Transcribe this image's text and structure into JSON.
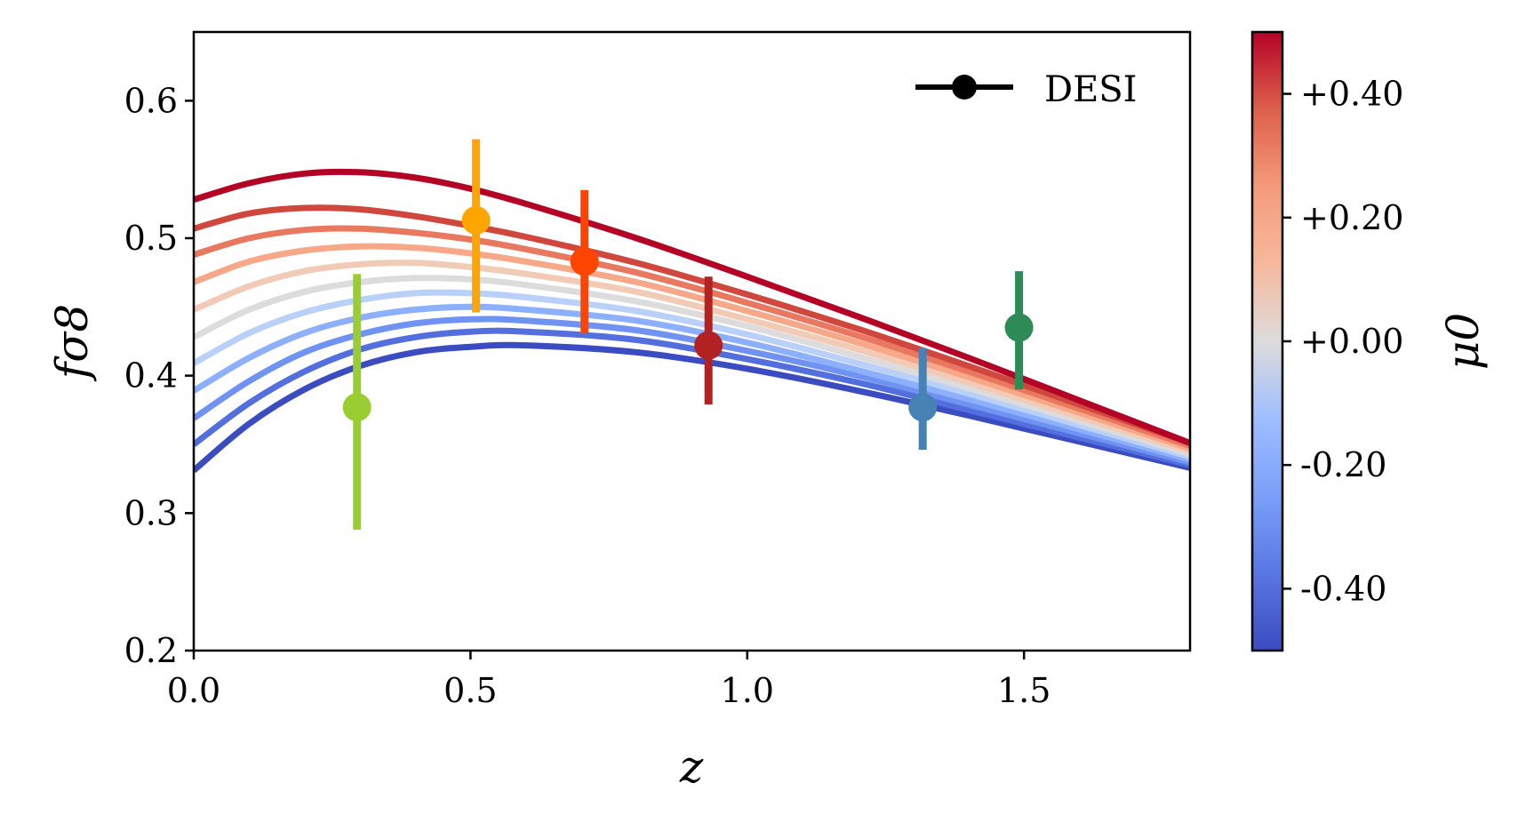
{
  "chart_data": {
    "type": "line",
    "xlabel": "z",
    "ylabel": "fσ8",
    "xlim": [
      0.0,
      1.8
    ],
    "ylim": [
      0.2,
      0.65
    ],
    "xticks": [
      0.0,
      0.5,
      1.0,
      1.5
    ],
    "xtick_labels": [
      "0.0",
      "0.5",
      "1.0",
      "1.5"
    ],
    "yticks": [
      0.2,
      0.3,
      0.4,
      0.5,
      0.6
    ],
    "ytick_labels": [
      "0.2",
      "0.3",
      "0.4",
      "0.5",
      "0.6"
    ],
    "grid": false,
    "legend": {
      "position": "top-right",
      "entries": [
        {
          "label": "DESI",
          "color": "#000000",
          "marker": "circle"
        }
      ]
    },
    "colormap": {
      "name": "coolwarm",
      "vmin": -0.5,
      "vmax": 0.5,
      "low": "#3b4cc0",
      "mid": "#dddddd",
      "high": "#b40426"
    },
    "colorbar": {
      "label": "μ0",
      "ticks": [
        0.4,
        0.2,
        0.0,
        -0.2,
        -0.4
      ],
      "tick_labels": [
        "+0.40",
        "+0.20",
        "+0.00",
        "-0.20",
        "-0.40"
      ]
    },
    "series": [
      {
        "mu0": -0.5,
        "color": "#3b4cc0",
        "x": [
          0.0,
          0.1,
          0.2,
          0.3,
          0.4,
          0.5,
          0.6,
          0.8,
          1.0,
          1.2,
          1.4,
          1.6,
          1.8
        ],
        "y": [
          0.331,
          0.365,
          0.39,
          0.407,
          0.417,
          0.421,
          0.422,
          0.417,
          0.405,
          0.389,
          0.371,
          0.352,
          0.333
        ]
      },
      {
        "mu0": -0.4,
        "color": "#536edd",
        "x": [
          0.0,
          0.1,
          0.2,
          0.3,
          0.4,
          0.5,
          0.6,
          0.8,
          1.0,
          1.2,
          1.4,
          1.6,
          1.8
        ],
        "y": [
          0.35,
          0.38,
          0.403,
          0.419,
          0.428,
          0.432,
          0.432,
          0.426,
          0.412,
          0.395,
          0.375,
          0.355,
          0.335
        ]
      },
      {
        "mu0": -0.3,
        "color": "#6f92f3",
        "x": [
          0.0,
          0.1,
          0.2,
          0.3,
          0.4,
          0.5,
          0.6,
          0.8,
          1.0,
          1.2,
          1.4,
          1.6,
          1.8
        ],
        "y": [
          0.369,
          0.396,
          0.417,
          0.43,
          0.438,
          0.441,
          0.44,
          0.433,
          0.418,
          0.4,
          0.379,
          0.358,
          0.337
        ]
      },
      {
        "mu0": -0.2,
        "color": "#8db0fe",
        "x": [
          0.0,
          0.1,
          0.2,
          0.3,
          0.4,
          0.5,
          0.6,
          0.8,
          1.0,
          1.2,
          1.4,
          1.6,
          1.8
        ],
        "y": [
          0.389,
          0.413,
          0.431,
          0.442,
          0.448,
          0.45,
          0.448,
          0.44,
          0.424,
          0.404,
          0.383,
          0.361,
          0.339
        ]
      },
      {
        "mu0": -0.1,
        "color": "#b9d0f9",
        "x": [
          0.0,
          0.1,
          0.2,
          0.3,
          0.4,
          0.5,
          0.6,
          0.8,
          1.0,
          1.2,
          1.4,
          1.6,
          1.8
        ],
        "y": [
          0.409,
          0.431,
          0.446,
          0.455,
          0.46,
          0.46,
          0.457,
          0.447,
          0.43,
          0.409,
          0.387,
          0.364,
          0.341
        ]
      },
      {
        "mu0": 0.0,
        "color": "#dddcdc",
        "x": [
          0.0,
          0.1,
          0.2,
          0.3,
          0.4,
          0.5,
          0.6,
          0.8,
          1.0,
          1.2,
          1.4,
          1.6,
          1.8
        ],
        "y": [
          0.428,
          0.448,
          0.461,
          0.468,
          0.471,
          0.47,
          0.466,
          0.454,
          0.436,
          0.414,
          0.391,
          0.367,
          0.343
        ]
      },
      {
        "mu0": 0.1,
        "color": "#f2cbb7",
        "x": [
          0.0,
          0.1,
          0.2,
          0.3,
          0.4,
          0.5,
          0.6,
          0.8,
          1.0,
          1.2,
          1.4,
          1.6,
          1.8
        ],
        "y": [
          0.448,
          0.465,
          0.476,
          0.481,
          0.482,
          0.479,
          0.474,
          0.461,
          0.441,
          0.419,
          0.395,
          0.37,
          0.345
        ]
      },
      {
        "mu0": 0.2,
        "color": "#f7a889",
        "x": [
          0.0,
          0.1,
          0.2,
          0.3,
          0.4,
          0.5,
          0.6,
          0.8,
          1.0,
          1.2,
          1.4,
          1.6,
          1.8
        ],
        "y": [
          0.468,
          0.483,
          0.491,
          0.494,
          0.493,
          0.489,
          0.483,
          0.468,
          0.447,
          0.424,
          0.399,
          0.373,
          0.347
        ]
      },
      {
        "mu0": 0.3,
        "color": "#e8785f",
        "x": [
          0.0,
          0.1,
          0.2,
          0.3,
          0.4,
          0.5,
          0.6,
          0.8,
          1.0,
          1.2,
          1.4,
          1.6,
          1.8
        ],
        "y": [
          0.488,
          0.5,
          0.506,
          0.507,
          0.504,
          0.499,
          0.492,
          0.475,
          0.453,
          0.429,
          0.403,
          0.376,
          0.349
        ]
      },
      {
        "mu0": 0.4,
        "color": "#d0473d",
        "x": [
          0.0,
          0.1,
          0.2,
          0.3,
          0.4,
          0.5,
          0.6,
          0.8,
          1.0,
          1.2,
          1.4,
          1.6,
          1.8
        ],
        "y": [
          0.507,
          0.518,
          0.522,
          0.521,
          0.516,
          0.509,
          0.501,
          0.482,
          0.459,
          0.434,
          0.407,
          0.379,
          0.351
        ]
      },
      {
        "mu0": 0.5,
        "color": "#b40426",
        "x": [
          0.0,
          0.1,
          0.2,
          0.3,
          0.4,
          0.5,
          0.6,
          0.8,
          1.0,
          1.2,
          1.4,
          1.6,
          1.8
        ],
        "y": [
          0.528,
          0.54,
          0.547,
          0.548,
          0.544,
          0.536,
          0.525,
          0.5,
          0.472,
          0.443,
          0.413,
          0.382,
          0.351
        ]
      }
    ],
    "data_points": [
      {
        "x": 0.295,
        "y": 0.377,
        "yerr_low": 0.288,
        "yerr_high": 0.474,
        "color": "#9acd32"
      },
      {
        "x": 0.51,
        "y": 0.513,
        "yerr_low": 0.446,
        "yerr_high": 0.572,
        "color": "#ffa500"
      },
      {
        "x": 0.706,
        "y": 0.483,
        "yerr_low": 0.431,
        "yerr_high": 0.535,
        "color": "#ff4500"
      },
      {
        "x": 0.93,
        "y": 0.422,
        "yerr_low": 0.379,
        "yerr_high": 0.472,
        "color": "#b22222"
      },
      {
        "x": 1.317,
        "y": 0.377,
        "yerr_low": 0.346,
        "yerr_high": 0.42,
        "color": "#4682b4"
      },
      {
        "x": 1.491,
        "y": 0.435,
        "yerr_low": 0.39,
        "yerr_high": 0.476,
        "color": "#2e8b57"
      }
    ]
  }
}
